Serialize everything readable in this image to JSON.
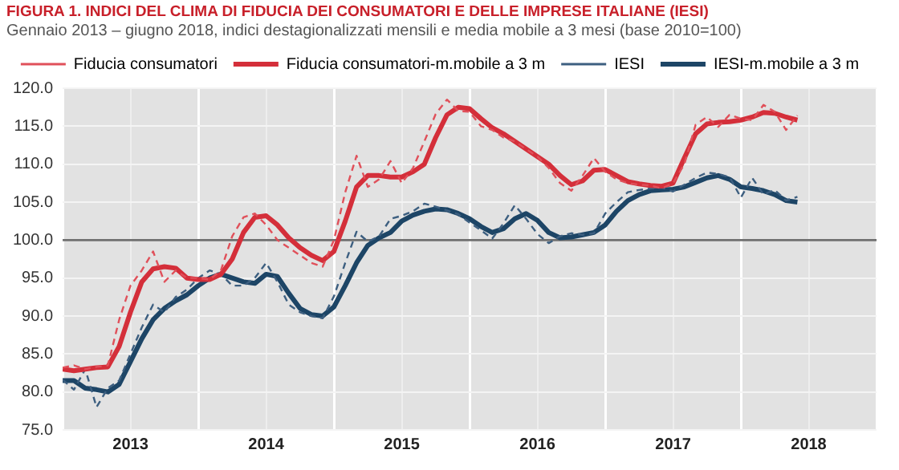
{
  "chart_data": {
    "type": "line",
    "title": "FIGURA 1. INDICI DEL CLIMA DI FIDUCIA DEI CONSUMATORI E DELLE IMPRESE ITALIANE (IESI)",
    "subtitle": "Gennaio 2013 – giugno 2018, indici destagionalizzati mensili e media mobile a 3 mesi (base 2010=100)",
    "x": [
      "2013-01",
      "2013-02",
      "2013-03",
      "2013-04",
      "2013-05",
      "2013-06",
      "2013-07",
      "2013-08",
      "2013-09",
      "2013-10",
      "2013-11",
      "2013-12",
      "2014-01",
      "2014-02",
      "2014-03",
      "2014-04",
      "2014-05",
      "2014-06",
      "2014-07",
      "2014-08",
      "2014-09",
      "2014-10",
      "2014-11",
      "2014-12",
      "2015-01",
      "2015-02",
      "2015-03",
      "2015-04",
      "2015-05",
      "2015-06",
      "2015-07",
      "2015-08",
      "2015-09",
      "2015-10",
      "2015-11",
      "2015-12",
      "2016-01",
      "2016-02",
      "2016-03",
      "2016-04",
      "2016-05",
      "2016-06",
      "2016-07",
      "2016-08",
      "2016-09",
      "2016-10",
      "2016-11",
      "2016-12",
      "2017-01",
      "2017-02",
      "2017-03",
      "2017-04",
      "2017-05",
      "2017-06",
      "2017-07",
      "2017-08",
      "2017-09",
      "2017-10",
      "2017-11",
      "2017-12",
      "2018-01",
      "2018-02",
      "2018-03",
      "2018-04",
      "2018-05",
      "2018-06"
    ],
    "series": [
      {
        "name": "Fiducia consumatori",
        "color": "#e0505a",
        "line_style": "dashed",
        "values": [
          83.2,
          83.5,
          83.0,
          83.3,
          83.5,
          89.5,
          94.0,
          96.0,
          98.5,
          94.5,
          96.0,
          95.0,
          95.0,
          94.8,
          96.0,
          100.5,
          103.0,
          103.5,
          102.0,
          100.0,
          99.0,
          98.0,
          97.0,
          96.5,
          100.0,
          106.3,
          111.1,
          107.0,
          108.0,
          110.4,
          107.5,
          109.5,
          113.0,
          116.6,
          118.5,
          117.0,
          116.9,
          115.0,
          114.5,
          113.5,
          113.0,
          112.0,
          111.0,
          109.5,
          107.5,
          106.5,
          108.5,
          110.8,
          109.0,
          108.0,
          107.5,
          107.3,
          107.2,
          106.8,
          107.5,
          110.0,
          115.2,
          116.2,
          114.9,
          116.5,
          116.0,
          115.8,
          117.8,
          116.9,
          114.5,
          116.4
        ]
      },
      {
        "name": "Fiducia consumatori-m.mobile a 3 m",
        "color": "#d42f3a",
        "line_style": "solid",
        "values": [
          83.0,
          82.8,
          83.0,
          83.2,
          83.3,
          86.0,
          90.5,
          94.5,
          96.2,
          96.5,
          96.3,
          95.0,
          94.8,
          94.8,
          95.5,
          97.5,
          101.0,
          103.0,
          103.2,
          102.0,
          100.3,
          99.0,
          98.0,
          97.3,
          98.5,
          102.5,
          107.0,
          108.5,
          108.5,
          108.3,
          108.3,
          109.0,
          110.0,
          113.5,
          116.5,
          117.5,
          117.3,
          116.0,
          114.8,
          114.0,
          113.0,
          112.0,
          111.0,
          110.0,
          108.5,
          107.3,
          107.8,
          109.2,
          109.3,
          108.5,
          107.7,
          107.4,
          107.2,
          107.1,
          107.5,
          110.8,
          114.0,
          115.3,
          115.5,
          115.6,
          115.8,
          116.2,
          116.8,
          116.7,
          116.2,
          115.8
        ]
      },
      {
        "name": "IESI",
        "color": "#3d5f80",
        "line_style": "dashed",
        "values": [
          81.6,
          80.3,
          83.0,
          78.0,
          80.5,
          81.5,
          85.0,
          88.5,
          91.5,
          90.5,
          92.5,
          93.5,
          95.0,
          96.0,
          95.5,
          94.0,
          94.0,
          95.0,
          97.0,
          94.5,
          91.5,
          90.5,
          90.0,
          89.7,
          92.6,
          97.0,
          101.1,
          99.8,
          100.5,
          102.8,
          103.2,
          103.8,
          104.8,
          104.4,
          103.9,
          103.4,
          102.3,
          101.3,
          100.2,
          102.2,
          104.6,
          102.8,
          100.8,
          99.6,
          100.5,
          100.9,
          100.7,
          100.9,
          103.5,
          105.0,
          106.3,
          106.6,
          106.8,
          106.9,
          106.4,
          107.3,
          108.2,
          108.9,
          108.7,
          108.3,
          105.6,
          108.2,
          106.0,
          106.6,
          105.2,
          105.7
        ]
      },
      {
        "name": "IESI-m.mobile a 3 m",
        "color": "#1d4566",
        "line_style": "solid",
        "values": [
          81.5,
          81.5,
          80.5,
          80.3,
          80.0,
          81.0,
          84.0,
          87.0,
          89.5,
          91.0,
          92.0,
          92.8,
          94.0,
          95.0,
          95.5,
          95.0,
          94.5,
          94.3,
          95.5,
          95.2,
          93.0,
          91.0,
          90.2,
          90.0,
          91.2,
          94.0,
          97.0,
          99.3,
          100.3,
          101.0,
          102.5,
          103.3,
          103.8,
          104.1,
          104.0,
          103.5,
          102.8,
          101.8,
          101.0,
          101.5,
          102.8,
          103.5,
          102.6,
          101.0,
          100.3,
          100.4,
          100.7,
          101.0,
          102.0,
          103.8,
          105.2,
          106.0,
          106.5,
          106.6,
          106.7,
          107.0,
          107.6,
          108.2,
          108.5,
          108.0,
          107.0,
          106.8,
          106.5,
          106.0,
          105.2,
          105.0
        ]
      }
    ],
    "xlim": [
      "2013-01",
      "2019-01"
    ],
    "xticks": [
      {
        "value": "2013-01",
        "label": null
      },
      {
        "value": "2013-07",
        "label": "2013"
      },
      {
        "value": "2014-01",
        "label": null
      },
      {
        "value": "2014-07",
        "label": "2014"
      },
      {
        "value": "2015-01",
        "label": null
      },
      {
        "value": "2015-07",
        "label": "2015"
      },
      {
        "value": "2016-01",
        "label": null
      },
      {
        "value": "2016-07",
        "label": "2016"
      },
      {
        "value": "2017-01",
        "label": null
      },
      {
        "value": "2017-07",
        "label": "2017"
      },
      {
        "value": "2018-01",
        "label": null
      },
      {
        "value": "2018-07",
        "label": "2018"
      },
      {
        "value": "2019-01",
        "label": null
      }
    ],
    "ylim": [
      75,
      120
    ],
    "yticks": [
      {
        "value": 75,
        "label": "75.0"
      },
      {
        "value": 80,
        "label": "80.0"
      },
      {
        "value": 85,
        "label": "85.0"
      },
      {
        "value": 90,
        "label": "90.0"
      },
      {
        "value": 95,
        "label": "95.0"
      },
      {
        "value": 100,
        "label": "100.0"
      },
      {
        "value": 105,
        "label": "105.0"
      },
      {
        "value": 110,
        "label": "110.0"
      },
      {
        "value": 115,
        "label": "115.0"
      },
      {
        "value": 120,
        "label": "120.0"
      }
    ],
    "ref_lines": [
      {
        "axis": "y",
        "value": 100,
        "color": "#707070"
      }
    ],
    "grid": true,
    "legend": "top",
    "marker": "none"
  }
}
